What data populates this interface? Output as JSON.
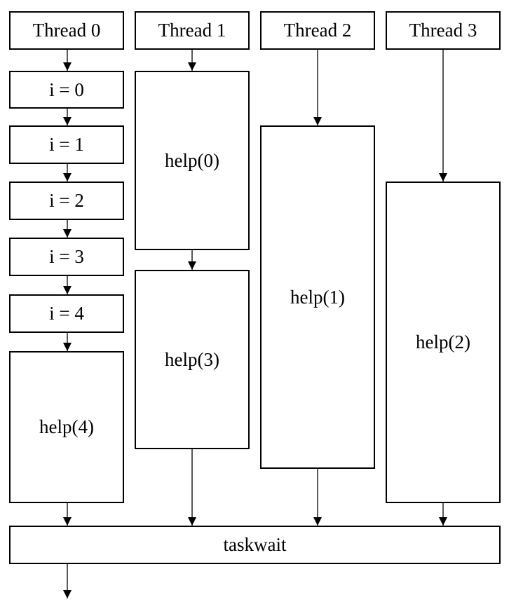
{
  "threads": [
    {
      "header": "Thread 0",
      "blocks": [
        "i = 0",
        "i = 1",
        "i = 2",
        "i = 3",
        "i = 4",
        "help(4)"
      ]
    },
    {
      "header": "Thread 1",
      "blocks": [
        "help(0)",
        "help(3)"
      ]
    },
    {
      "header": "Thread 2",
      "blocks": [
        "help(1)"
      ]
    },
    {
      "header": "Thread 3",
      "blocks": [
        "help(2)"
      ]
    }
  ],
  "barrier": {
    "label": "taskwait"
  },
  "colors": {
    "stroke": "#000000",
    "fill": "#ffffff",
    "text": "#000000"
  }
}
